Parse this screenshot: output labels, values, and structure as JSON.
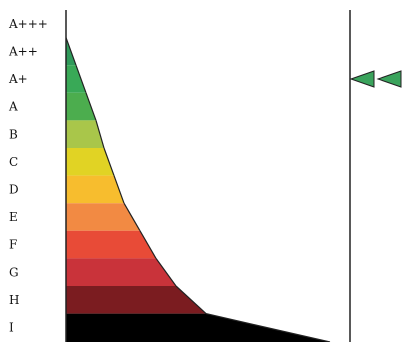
{
  "energy_classes": [
    {
      "label": "A+++",
      "color": null
    },
    {
      "label": "A++",
      "color": "#2f9a5a"
    },
    {
      "label": "A+",
      "color": "#39a957"
    },
    {
      "label": "A",
      "color": "#4cad4e"
    },
    {
      "label": "B",
      "color": "#a9c64a"
    },
    {
      "label": "C",
      "color": "#e1d324"
    },
    {
      "label": "D",
      "color": "#f7bd2e"
    },
    {
      "label": "E",
      "color": "#f28a43"
    },
    {
      "label": "F",
      "color": "#e84b37"
    },
    {
      "label": "G",
      "color": "#c9333a"
    },
    {
      "label": "H",
      "color": "#7b1c20"
    },
    {
      "label": "I",
      "color": "#000000"
    }
  ],
  "indicator": {
    "class": "A+",
    "color": "#3aa35c"
  },
  "colors": {
    "lines": "#222222",
    "text": "#111111",
    "background": "#ffffff"
  }
}
